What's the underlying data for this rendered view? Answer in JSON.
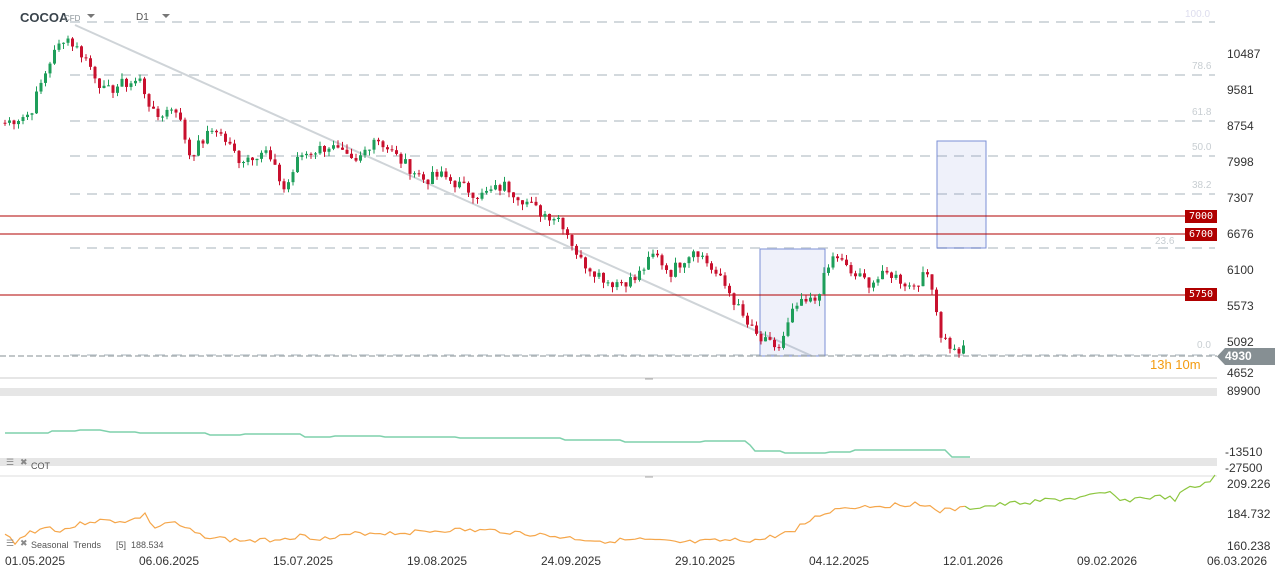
{
  "header": {
    "symbol": "COCOA",
    "type": "CFD",
    "timeframe": "D1"
  },
  "price_axis": [
    "10487",
    "9581",
    "8754",
    "7998",
    "7307",
    "6676",
    "6100",
    "5573",
    "5092",
    "4652"
  ],
  "fib_levels": [
    "100.0",
    "78.6",
    "61.8",
    "50.0",
    "38.2",
    "23.6",
    "0.0"
  ],
  "levels": [
    "7000",
    "6700",
    "5750"
  ],
  "current_price": "4930",
  "countdown": "13h 10m",
  "cot": {
    "label": "COT",
    "axis": [
      "89900",
      "-13510",
      "-27500"
    ]
  },
  "seasonal": {
    "label": "Seasonal  Trends",
    "period": "[5]",
    "value": "188.534",
    "axis": [
      "209.226",
      "184.732",
      "160.238"
    ]
  },
  "dates": [
    "01.05.2025",
    "06.06.2025",
    "15.07.2025",
    "19.08.2025",
    "24.09.2025",
    "29.10.2025",
    "04.12.2025",
    "12.01.2026",
    "09.02.2026",
    "06.03.2026"
  ],
  "colors": {
    "up": "#1e9e5a",
    "down": "#c8102e",
    "level": "#b00000",
    "box": "#7b8fd6",
    "cot": "#7fd1ac",
    "seasonal_past": "#f5a64a",
    "seasonal_future": "#8cc63f",
    "current": "#868f93",
    "countdown": "#f39c12"
  }
}
